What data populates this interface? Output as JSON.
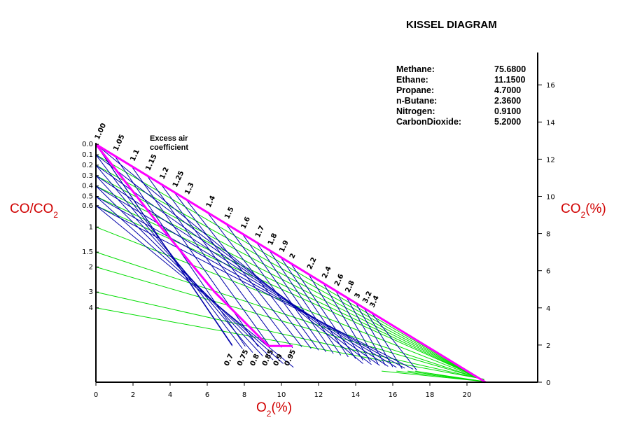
{
  "title": "KISSEL DIAGRAM",
  "composition": [
    {
      "name": "Methane:",
      "value": "75.6800"
    },
    {
      "name": "Ethane:",
      "value": "11.1500"
    },
    {
      "name": "Propane:",
      "value": "4.7000"
    },
    {
      "name": "n-Butane:",
      "value": "2.3600"
    },
    {
      "name": "Nitrogen:",
      "value": "0.9100"
    },
    {
      "name": "CarbonDioxide:",
      "value": "5.2000"
    }
  ],
  "axis_labels": {
    "left_main": "CO/CO",
    "left_sub": "2",
    "right_main": "CO",
    "right_sub": "2",
    "right_tail": "(%)",
    "bottom_main": "O",
    "bottom_sub": "2",
    "bottom_tail": "(%)"
  },
  "excess_label": {
    "line1": "Excess air",
    "line2": "coefficient"
  },
  "colors": {
    "excess": "#ff00ff",
    "blue": "#0000aa",
    "green": "#00dd00",
    "red": "#d00000",
    "axis": "#000000"
  },
  "chart_data": {
    "type": "line",
    "title": "KISSEL DIAGRAM",
    "xlabel": "O2(%)",
    "ylabel_right": "CO2(%)",
    "ylabel_left": "CO/CO2",
    "xlim": [
      0,
      24
    ],
    "ylim": [
      0,
      18
    ],
    "x_ticks": [
      0,
      2,
      4,
      6,
      8,
      10,
      12,
      14,
      16,
      18,
      20
    ],
    "y_ticks": [
      0,
      2,
      4,
      6,
      8,
      10,
      12,
      14,
      16
    ],
    "co2_max": 12.8,
    "o2_max": 21,
    "co_ratio_ticks": [
      {
        "label": "0.0",
        "y": 12.8
      },
      {
        "label": "0.1",
        "y": 12.24
      },
      {
        "label": "0.2",
        "y": 11.68
      },
      {
        "label": "0.3",
        "y": 11.12
      },
      {
        "label": "0.4",
        "y": 10.56
      },
      {
        "label": "0.5",
        "y": 10.0
      },
      {
        "label": "0.6",
        "y": 9.5
      },
      {
        "label": "1",
        "y": 8.35
      },
      {
        "label": "1.5",
        "y": 7.0
      },
      {
        "label": "2",
        "y": 6.2
      },
      {
        "label": "3",
        "y": 4.85
      },
      {
        "label": "4",
        "y": 4.0
      }
    ],
    "excess_air_top": [
      {
        "label": "1.00",
        "x": 0.0
      },
      {
        "label": "1.05",
        "x": 1.0
      },
      {
        "label": "1.1",
        "x": 1.91
      },
      {
        "label": "1.15",
        "x": 2.74
      },
      {
        "label": "1.2",
        "x": 3.5
      },
      {
        "label": "1.25",
        "x": 4.2
      },
      {
        "label": "1.3",
        "x": 4.85
      },
      {
        "label": "1.4",
        "x": 6.0
      },
      {
        "label": "1.5",
        "x": 7.0
      },
      {
        "label": "1.6",
        "x": 7.88
      },
      {
        "label": "1.7",
        "x": 8.65
      },
      {
        "label": "1.8",
        "x": 9.33
      },
      {
        "label": "1.9",
        "x": 9.95
      },
      {
        "label": "2",
        "x": 10.5
      },
      {
        "label": "2.2",
        "x": 11.45
      },
      {
        "label": "2.4",
        "x": 12.25
      },
      {
        "label": "2.6",
        "x": 12.92
      },
      {
        "label": "2.8",
        "x": 13.5
      },
      {
        "label": "3",
        "x": 14.0
      },
      {
        "label": "3.2",
        "x": 14.44
      },
      {
        "label": "3.4",
        "x": 14.82
      }
    ],
    "excess_air_bottom": [
      {
        "label": "0.7",
        "x": 7.35
      },
      {
        "label": "0.75",
        "x": 8.05
      },
      {
        "label": "0.8",
        "x": 8.75
      },
      {
        "label": "0.85",
        "x": 9.4
      },
      {
        "label": "0.9",
        "x": 10.0
      },
      {
        "label": "0.95",
        "x": 10.6
      }
    ],
    "lambda_one_curve": [
      [
        0,
        12.8
      ],
      [
        3.5,
        8.35
      ],
      [
        6.4,
        4.85
      ],
      [
        9.3,
        1.95
      ],
      [
        10.6,
        1.95
      ]
    ],
    "green_endpoints_x": [
      15.1,
      15.8,
      16.4,
      16.9,
      17.3,
      17.6,
      17.9,
      18.1,
      18.3,
      18.6,
      19.2,
      19.9
    ]
  }
}
